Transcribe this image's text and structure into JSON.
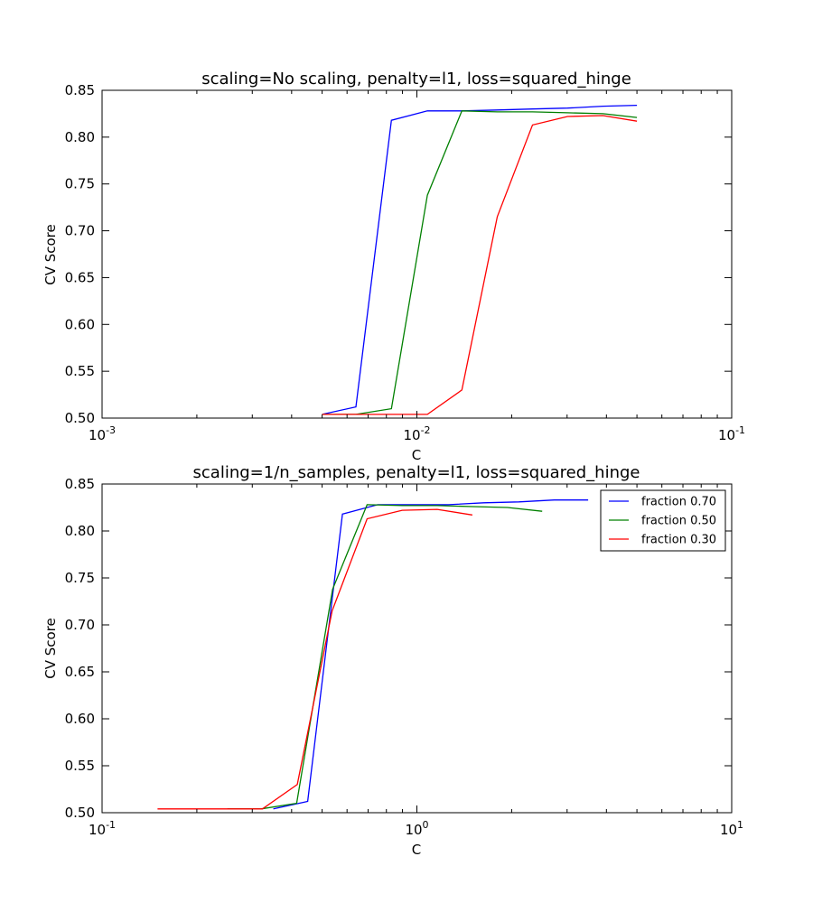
{
  "colors": {
    "fraction_070": "#0000ff",
    "fraction_050": "#008000",
    "fraction_030": "#ff0000"
  },
  "chart_data": [
    {
      "type": "line",
      "title": "scaling=No scaling, penalty=l1, loss=squared_hinge",
      "xlabel": "C",
      "ylabel": "CV Score",
      "xscale": "log",
      "xlim": [
        0.001,
        0.1
      ],
      "ylim": [
        0.5,
        0.85
      ],
      "xticks": [
        {
          "value": 0.001,
          "base": "10",
          "exp": "-3"
        },
        {
          "value": 0.01,
          "base": "10",
          "exp": "-2"
        },
        {
          "value": 0.1,
          "base": "10",
          "exp": "-1"
        }
      ],
      "yticks": [
        "0.50",
        "0.55",
        "0.60",
        "0.65",
        "0.70",
        "0.75",
        "0.80",
        "0.85"
      ],
      "grid": false,
      "legend": null,
      "series": [
        {
          "color": "#0000ff",
          "x": [
            0.005,
            0.0064,
            0.0083,
            0.0108,
            0.0139,
            0.018,
            0.0233,
            0.0301,
            0.039,
            0.05
          ],
          "y": [
            0.504,
            0.512,
            0.818,
            0.828,
            0.828,
            0.829,
            0.83,
            0.831,
            0.833,
            0.834
          ]
        },
        {
          "color": "#008000",
          "x": [
            0.005,
            0.0064,
            0.0083,
            0.0108,
            0.0139,
            0.018,
            0.0233,
            0.0301,
            0.039,
            0.05
          ],
          "y": [
            0.504,
            0.504,
            0.51,
            0.738,
            0.828,
            0.827,
            0.827,
            0.826,
            0.825,
            0.821
          ]
        },
        {
          "color": "#ff0000",
          "x": [
            0.005,
            0.0064,
            0.0083,
            0.0108,
            0.0139,
            0.018,
            0.0233,
            0.0301,
            0.039,
            0.05
          ],
          "y": [
            0.504,
            0.504,
            0.504,
            0.504,
            0.53,
            0.715,
            0.813,
            0.822,
            0.823,
            0.817
          ]
        }
      ]
    },
    {
      "type": "line",
      "title": "scaling=1/n_samples, penalty=l1, loss=squared_hinge",
      "xlabel": "C",
      "ylabel": "CV Score",
      "xscale": "log",
      "xlim": [
        0.1,
        10
      ],
      "ylim": [
        0.5,
        0.85
      ],
      "xticks": [
        {
          "value": 0.1,
          "base": "10",
          "exp": "-1"
        },
        {
          "value": 1,
          "base": "10",
          "exp": "0"
        },
        {
          "value": 10,
          "base": "10",
          "exp": "1"
        }
      ],
      "yticks": [
        "0.50",
        "0.55",
        "0.60",
        "0.65",
        "0.70",
        "0.75",
        "0.80",
        "0.85"
      ],
      "grid": false,
      "legend": "top-right",
      "series": [
        {
          "name": "fraction 0.70",
          "color": "#0000ff",
          "x": [
            0.35,
            0.45,
            0.58,
            0.75,
            0.97,
            1.26,
            1.63,
            2.11,
            2.73,
            3.5
          ],
          "y": [
            0.504,
            0.512,
            0.818,
            0.828,
            0.828,
            0.828,
            0.83,
            0.831,
            0.833,
            0.833
          ]
        },
        {
          "name": "fraction 0.50",
          "color": "#008000",
          "x": [
            0.25,
            0.32,
            0.415,
            0.54,
            0.695,
            0.9,
            1.16,
            1.5,
            1.94,
            2.5
          ],
          "y": [
            0.504,
            0.504,
            0.51,
            0.738,
            0.828,
            0.827,
            0.827,
            0.826,
            0.825,
            0.821
          ]
        },
        {
          "name": "fraction 0.30",
          "color": "#ff0000",
          "x": [
            0.15,
            0.193,
            0.25,
            0.323,
            0.417,
            0.538,
            0.695,
            0.898,
            1.16,
            1.5
          ],
          "y": [
            0.504,
            0.504,
            0.504,
            0.504,
            0.53,
            0.715,
            0.813,
            0.822,
            0.823,
            0.817
          ]
        }
      ]
    }
  ]
}
